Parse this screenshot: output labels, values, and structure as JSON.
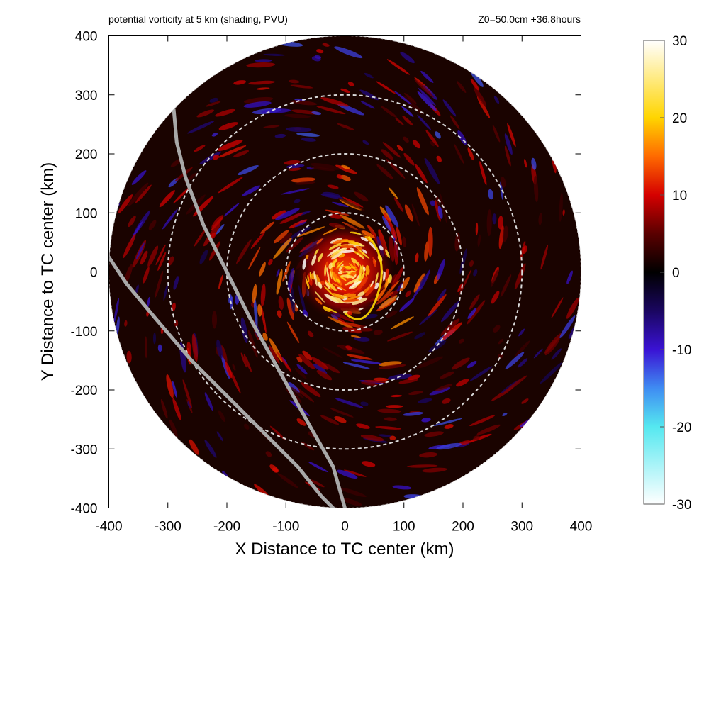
{
  "chart_data": {
    "type": "heatmap",
    "title": "potential vorticity at 5 km (shading, PVU)",
    "subtitle": "Z0=50.0cm  +36.8hours",
    "xlabel": "X Distance to TC center (km)",
    "ylabel": "Y Distance to TC center (km)",
    "xlim": [
      -400,
      400
    ],
    "ylim": [
      -400,
      400
    ],
    "x_ticks": [
      -400,
      -300,
      -200,
      -100,
      0,
      100,
      200,
      300,
      400
    ],
    "y_ticks": [
      -400,
      -300,
      -200,
      -100,
      0,
      100,
      200,
      300,
      400
    ],
    "colorbar": {
      "range": [
        -30,
        30
      ],
      "ticks": [
        30,
        20,
        10,
        0,
        -10,
        -20,
        -30
      ],
      "stops": [
        {
          "value": -30,
          "color": "#ffffff"
        },
        {
          "value": -20,
          "color": "#55e8f0"
        },
        {
          "value": -15,
          "color": "#3f8cf2"
        },
        {
          "value": -10,
          "color": "#3a12d4"
        },
        {
          "value": -5,
          "color": "#1a0660"
        },
        {
          "value": 0,
          "color": "#000000"
        },
        {
          "value": 5,
          "color": "#5a0000"
        },
        {
          "value": 10,
          "color": "#d50000"
        },
        {
          "value": 15,
          "color": "#ff6a00"
        },
        {
          "value": 20,
          "color": "#ffd500"
        },
        {
          "value": 30,
          "color": "#ffffff"
        }
      ]
    },
    "domain_radius_km": 400,
    "range_rings_km": [
      100,
      200,
      300
    ],
    "tracks": [
      {
        "points": [
          [
            -290,
            275
          ],
          [
            -285,
            220
          ],
          [
            -270,
            160
          ],
          [
            -240,
            80
          ],
          [
            -200,
            0
          ],
          [
            -160,
            -80
          ],
          [
            -110,
            -170
          ],
          [
            -60,
            -260
          ],
          [
            -20,
            -330
          ],
          [
            0,
            -400
          ]
        ]
      },
      {
        "points": [
          [
            -400,
            25
          ],
          [
            -370,
            -20
          ],
          [
            -320,
            -80
          ],
          [
            -260,
            -150
          ],
          [
            -200,
            -210
          ],
          [
            -140,
            -270
          ],
          [
            -80,
            -330
          ],
          [
            -40,
            -380
          ],
          [
            -20,
            -400
          ]
        ]
      }
    ],
    "grid": false,
    "colors": {
      "background": "#ffffff",
      "ring": "#d8d8d8",
      "track": "#a8a8a8",
      "axis": "#000000"
    }
  }
}
